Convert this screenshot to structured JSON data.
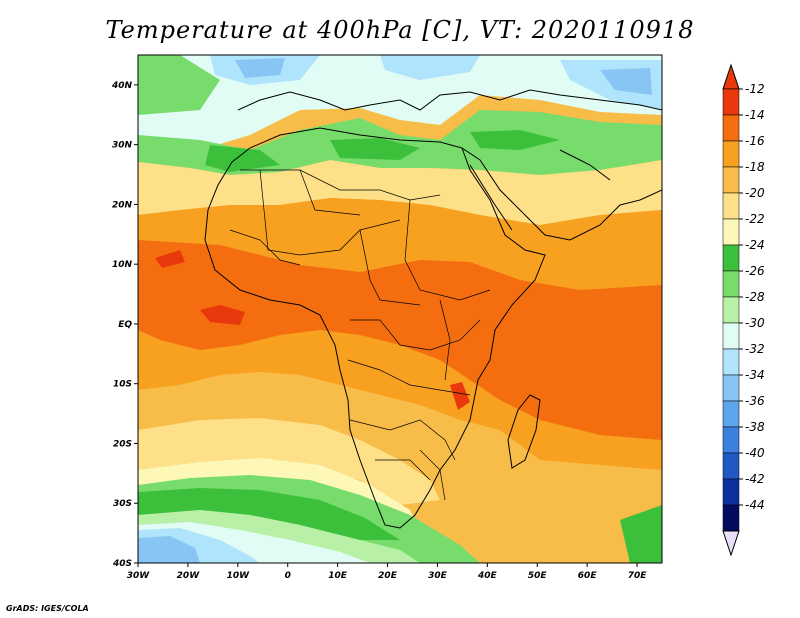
{
  "title": "Temperature at 400hPa [C], VT: 2020110918",
  "credit": "GrADS: IGES/COLA",
  "map": {
    "lon_range": [
      -30,
      75
    ],
    "lat_range": [
      -40,
      45
    ],
    "lon_ticks": [
      {
        "lon": -30,
        "label": "30W"
      },
      {
        "lon": -20,
        "label": "20W"
      },
      {
        "lon": -10,
        "label": "10W"
      },
      {
        "lon": 0,
        "label": "0"
      },
      {
        "lon": 10,
        "label": "10E"
      },
      {
        "lon": 20,
        "label": "20E"
      },
      {
        "lon": 30,
        "label": "30E"
      },
      {
        "lon": 40,
        "label": "40E"
      },
      {
        "lon": 50,
        "label": "50E"
      },
      {
        "lon": 60,
        "label": "60E"
      },
      {
        "lon": 70,
        "label": "70E"
      }
    ],
    "lat_ticks": [
      {
        "lat": 40,
        "label": "40N"
      },
      {
        "lat": 30,
        "label": "30N"
      },
      {
        "lat": 20,
        "label": "20N"
      },
      {
        "lat": 10,
        "label": "10N"
      },
      {
        "lat": 0,
        "label": "EQ"
      },
      {
        "lat": -10,
        "label": "10S"
      },
      {
        "lat": -20,
        "label": "20S"
      },
      {
        "lat": -30,
        "label": "30S"
      },
      {
        "lat": -40,
        "label": "40S"
      }
    ]
  },
  "colorbar": {
    "levels": [
      "-12",
      "-14",
      "-16",
      "-18",
      "-20",
      "-22",
      "-24",
      "-26",
      "-28",
      "-30",
      "-32",
      "-34",
      "-36",
      "-38",
      "-40",
      "-42",
      "-44"
    ],
    "colors": [
      "#e8380c",
      "#f46e10",
      "#f8a020",
      "#f8bc48",
      "#fde088",
      "#fdf8b8",
      "#3cc03c",
      "#78dc6c",
      "#b8f0a8",
      "#e0fcf4",
      "#b0e4fc",
      "#88c4f4",
      "#5ca4ec",
      "#3c80e0",
      "#2058c4",
      "#0c30a0",
      "#040c60"
    ],
    "top_cap": "#e8380c",
    "bottom_cap": "#e8e0f8"
  }
}
